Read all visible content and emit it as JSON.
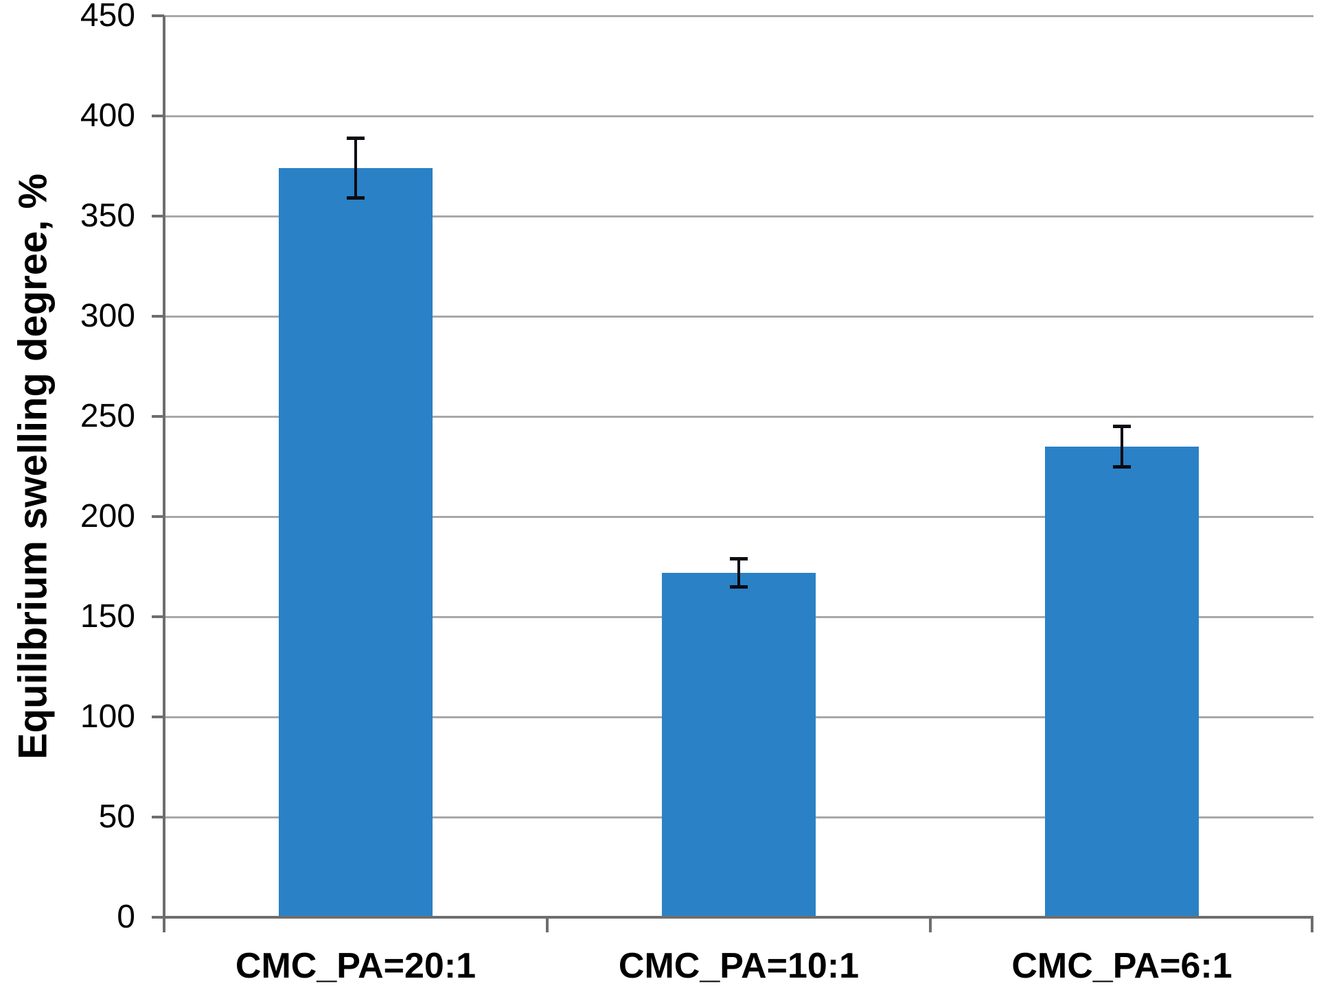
{
  "chart_data": {
    "type": "bar",
    "title": "",
    "categories": [
      "CMC_PA=20:1",
      "CMC_PA=10:1",
      "CMC_PA=6:1"
    ],
    "values": [
      374,
      172,
      235
    ],
    "error_bars": [
      15,
      7,
      10
    ],
    "xlabel": "",
    "ylabel": "Equilibrium swelling degree, %",
    "ylim": [
      0,
      450
    ],
    "ytick_step": 50,
    "yticks": [
      0,
      50,
      100,
      150,
      200,
      250,
      300,
      350,
      400,
      450
    ],
    "ytick_labels": [
      "0",
      "50",
      "100",
      "150",
      "200",
      "250",
      "300",
      "350",
      "400",
      "450"
    ],
    "grid": "horizontal",
    "legend_position": "none",
    "bar_color": "#2A81C5",
    "error_bar_color": "#0c0c14",
    "gridline_color": "#a8a8a8",
    "axis_color": "#6e6e6e",
    "text_color": "#000000"
  }
}
